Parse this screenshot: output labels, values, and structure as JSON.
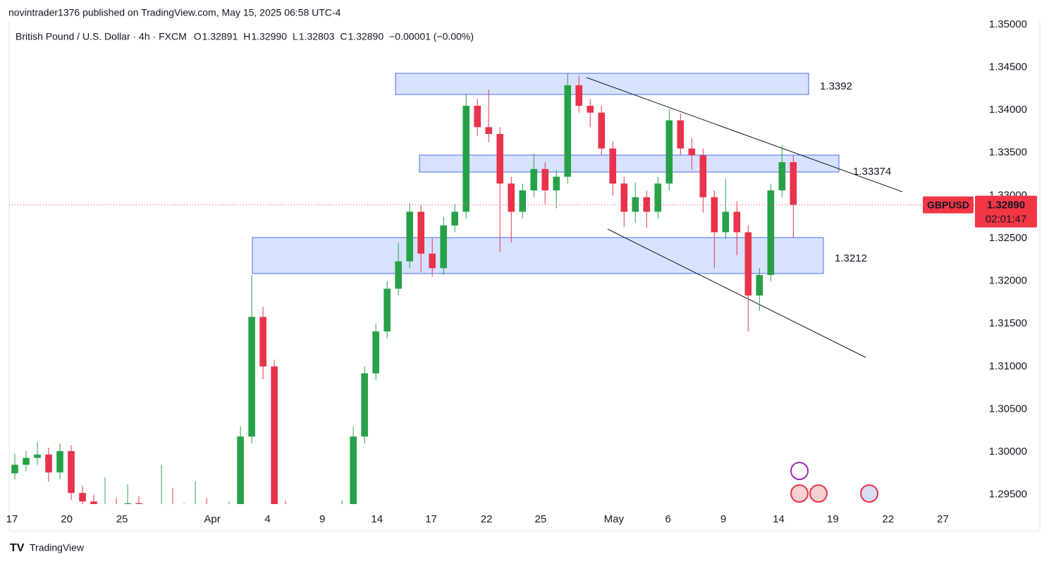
{
  "header": {
    "published": "novintrader1376 published on TradingView.com, May 15, 2025 06:58 UTC-4"
  },
  "footer": {
    "brand": "TradingView"
  },
  "chart_data": {
    "type": "candlestick",
    "legend": {
      "name": "British Pound / U.S. Dollar · 4h · FXCM",
      "items": [
        {
          "key": "O",
          "value": 1.32891
        },
        {
          "key": "H",
          "value": 1.3299,
          "label": "1.32990"
        },
        {
          "key": "L",
          "value": 1.32803
        },
        {
          "key": "C",
          "value": 1.3289,
          "label": "1.32890"
        }
      ],
      "change": "−0.00001 (−0.00%)"
    },
    "up_color": "#26a148",
    "down_color": "#e8334a",
    "candles": {
      "open": [
        1.2975,
        1.2985,
        1.2993,
        1.2997,
        1.2976,
        1.3001,
        1.2952,
        1.2942,
        1.293,
        1.2938,
        1.2925,
        1.294,
        1.292,
        1.2915,
        1.2935,
        1.2928,
        1.2918,
        1.2938,
        1.2925,
        1.2915,
        1.293,
        1.3018,
        1.3158,
        1.31,
        1.2935,
        1.2915,
        1.29,
        1.289,
        1.2905,
        1.292,
        1.2935,
        1.3018,
        1.3092,
        1.3141,
        1.3191,
        1.3223,
        1.3281,
        1.3232,
        1.3215,
        1.3265,
        1.3281,
        1.3405,
        1.338,
        1.3372,
        1.3314,
        1.3281,
        1.3306,
        1.3331,
        1.3306,
        1.3322,
        1.3429,
        1.3405,
        1.3397,
        1.3355,
        1.3314,
        1.3281,
        1.3298,
        1.3281,
        1.3314,
        1.3388,
        1.3355,
        1.3347,
        1.3298,
        1.3257,
        1.3281,
        1.3257,
        1.3183,
        1.3207,
        1.3306,
        1.3339
      ],
      "high": [
        1.2998,
        1.3001,
        1.3012,
        1.3005,
        1.301,
        1.3008,
        1.296,
        1.295,
        1.297,
        1.2946,
        1.2962,
        1.2948,
        1.293,
        1.2985,
        1.2958,
        1.294,
        1.2966,
        1.2946,
        1.2935,
        1.2942,
        1.303,
        1.3207,
        1.317,
        1.3108,
        1.2943,
        1.2925,
        1.291,
        1.2913,
        1.2928,
        1.2943,
        1.303,
        1.31,
        1.315,
        1.32,
        1.3245,
        1.3291,
        1.3289,
        1.325,
        1.3275,
        1.329,
        1.3419,
        1.3413,
        1.3424,
        1.338,
        1.3322,
        1.3314,
        1.3349,
        1.3339,
        1.333,
        1.3443,
        1.344,
        1.3413,
        1.3405,
        1.3363,
        1.3322,
        1.3315,
        1.3306,
        1.3322,
        1.3401,
        1.3396,
        1.3367,
        1.3355,
        1.3306,
        1.332,
        1.3293,
        1.3265,
        1.3215,
        1.3314,
        1.3359,
        1.3347
      ],
      "low": [
        1.2968,
        1.2977,
        1.2985,
        1.2965,
        1.2968,
        1.2944,
        1.293,
        1.292,
        1.2922,
        1.2915,
        1.2917,
        1.291,
        1.2905,
        1.2907,
        1.2918,
        1.2908,
        1.291,
        1.2915,
        1.2905,
        1.2907,
        1.2922,
        1.301,
        1.3085,
        1.292,
        1.2905,
        1.289,
        1.288,
        1.2882,
        1.2897,
        1.2912,
        1.2927,
        1.301,
        1.3084,
        1.3133,
        1.3183,
        1.3215,
        1.321,
        1.3205,
        1.3207,
        1.3257,
        1.3273,
        1.337,
        1.3362,
        1.3234,
        1.3245,
        1.3273,
        1.3298,
        1.329,
        1.3285,
        1.3314,
        1.3397,
        1.338,
        1.3347,
        1.33,
        1.3263,
        1.3268,
        1.3262,
        1.3273,
        1.3306,
        1.3347,
        1.333,
        1.328,
        1.3215,
        1.3249,
        1.323,
        1.3141,
        1.3165,
        1.3199,
        1.3298,
        1.325
      ],
      "close": [
        1.2985,
        1.2993,
        1.2997,
        1.2976,
        1.3001,
        1.2952,
        1.2942,
        1.293,
        1.2938,
        1.2925,
        1.294,
        1.292,
        1.2915,
        1.2935,
        1.2928,
        1.2918,
        1.2938,
        1.2925,
        1.2915,
        1.293,
        1.3018,
        1.3158,
        1.31,
        1.2935,
        1.2915,
        1.29,
        1.289,
        1.2905,
        1.292,
        1.2935,
        1.3018,
        1.3092,
        1.3141,
        1.3191,
        1.3223,
        1.3281,
        1.3232,
        1.3215,
        1.3265,
        1.3281,
        1.3405,
        1.338,
        1.3372,
        1.3314,
        1.3281,
        1.3306,
        1.3331,
        1.3306,
        1.3322,
        1.3429,
        1.3405,
        1.3397,
        1.3355,
        1.3314,
        1.3281,
        1.3298,
        1.3281,
        1.3314,
        1.3388,
        1.3355,
        1.3347,
        1.3298,
        1.3257,
        1.3281,
        1.3257,
        1.3183,
        1.3207,
        1.3306,
        1.3339,
        1.3289
      ]
    },
    "xlim": [
      -0.5,
      85.1
    ],
    "xticks": [
      {
        "value": -0.25,
        "label": "17"
      },
      {
        "value": 4.6,
        "label": "20"
      },
      {
        "value": 9.5,
        "label": "25"
      },
      {
        "value": 17.5,
        "label": "Apr"
      },
      {
        "value": 22.4,
        "label": "4"
      },
      {
        "value": 27.25,
        "label": "9"
      },
      {
        "value": 32.1,
        "label": "14"
      },
      {
        "value": 36.9,
        "label": "17"
      },
      {
        "value": 41.8,
        "label": "22"
      },
      {
        "value": 46.6,
        "label": "25"
      },
      {
        "value": 53.1,
        "label": "May"
      },
      {
        "value": 57.9,
        "label": "6"
      },
      {
        "value": 62.8,
        "label": "9"
      },
      {
        "value": 67.7,
        "label": "14"
      },
      {
        "value": 72.5,
        "label": "19"
      },
      {
        "value": 77.4,
        "label": "22"
      },
      {
        "value": 82.25,
        "label": "27"
      }
    ],
    "ylim": [
      1.2939,
      1.3504
    ],
    "yticks": [
      {
        "value": 1.295,
        "label": "1.29500"
      },
      {
        "value": 1.3,
        "label": "1.30000"
      },
      {
        "value": 1.305,
        "label": "1.30500"
      },
      {
        "value": 1.31,
        "label": "1.31000"
      },
      {
        "value": 1.315,
        "label": "1.31500"
      },
      {
        "value": 1.32,
        "label": "1.32000"
      },
      {
        "value": 1.325,
        "label": "1.32500"
      },
      {
        "value": 1.33,
        "label": "1.33000"
      },
      {
        "value": 1.335,
        "label": "1.33500"
      },
      {
        "value": 1.34,
        "label": "1.34000"
      },
      {
        "value": 1.345,
        "label": "1.34500"
      },
      {
        "value": 1.35,
        "label": "1.35000"
      }
    ],
    "grid": false,
    "last_price": {
      "symbol": "GBPUSD",
      "value": 1.3289,
      "label": "1.32890",
      "countdown": "02:01:47",
      "color": "#f23645"
    },
    "annotations": [
      "1.3392",
      "1.33374",
      "1.3212"
    ]
  }
}
